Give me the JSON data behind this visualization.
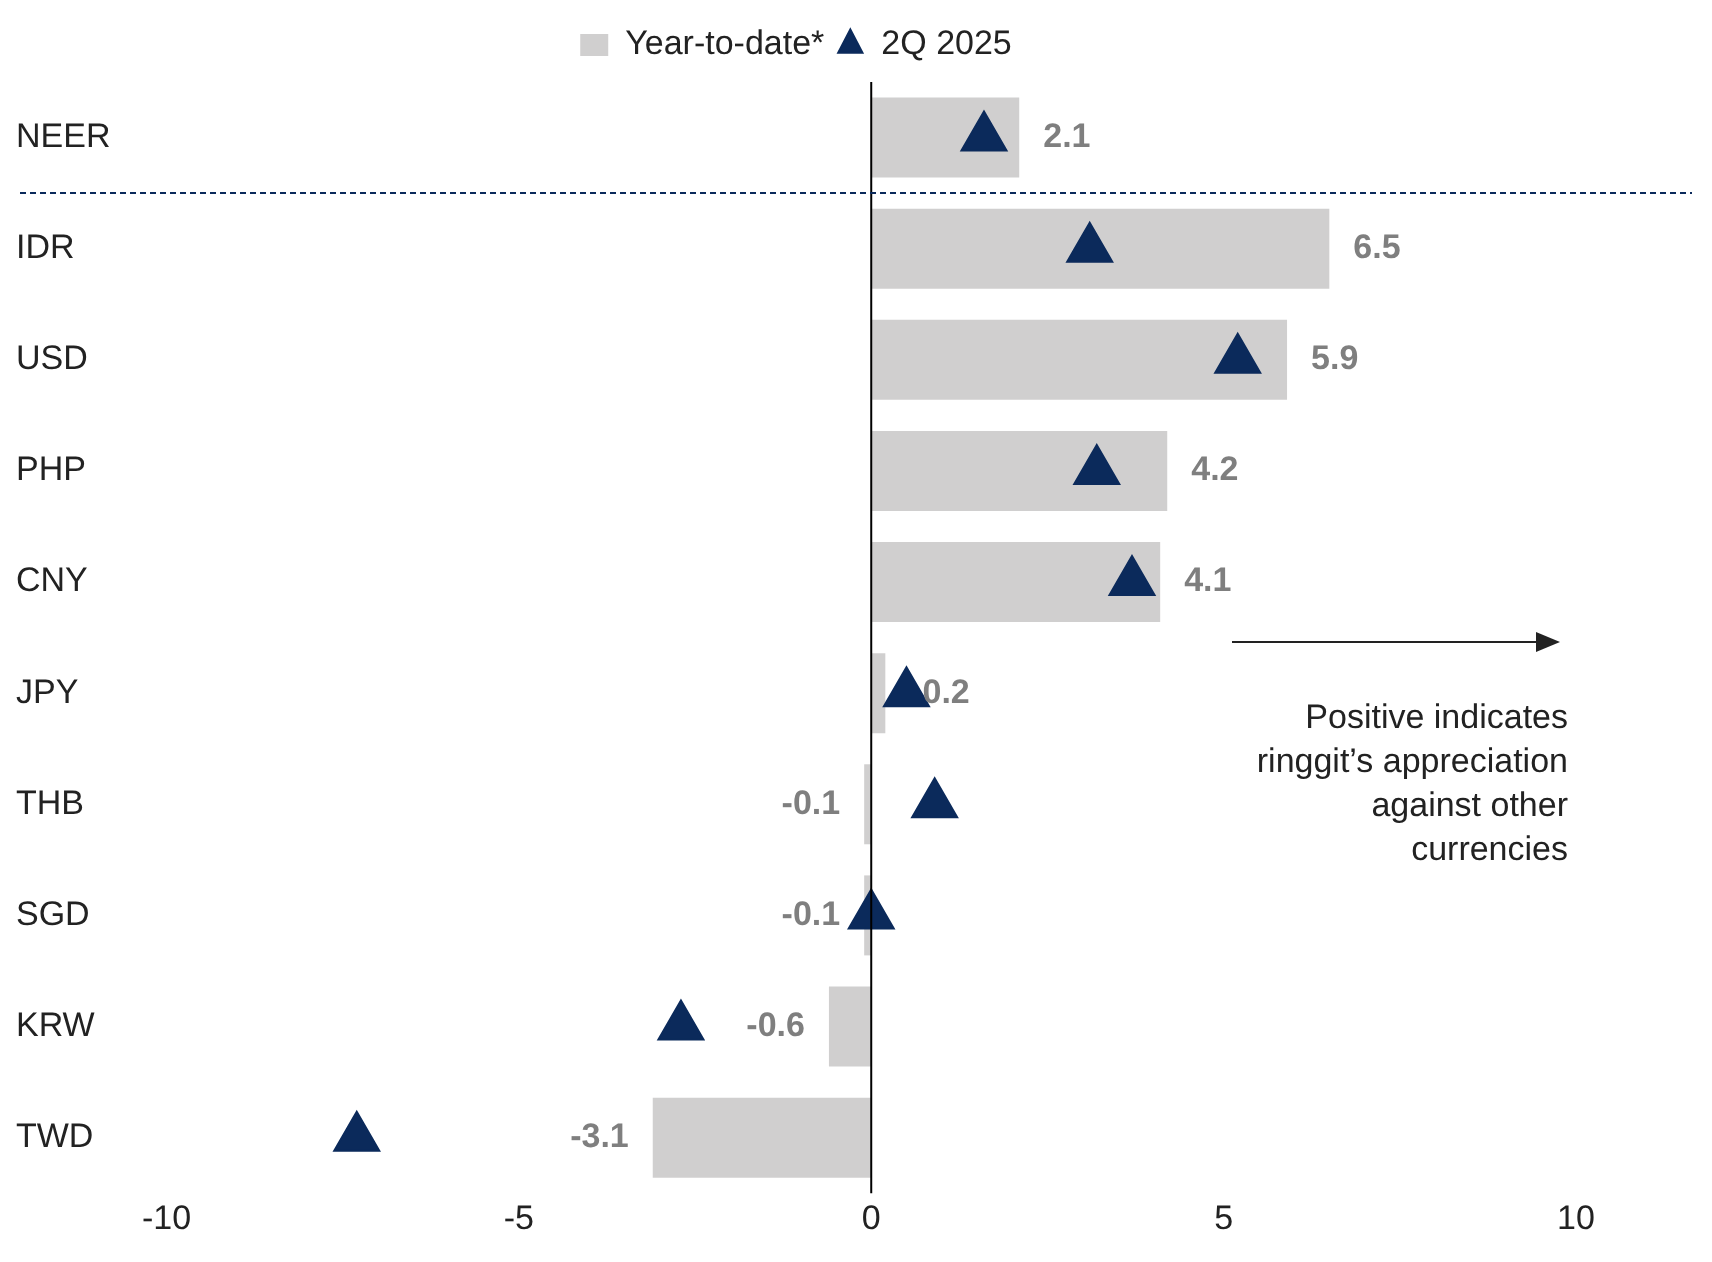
{
  "chart_data": {
    "type": "bar",
    "orientation": "horizontal",
    "categories": [
      "NEER",
      "IDR",
      "USD",
      "PHP",
      "CNY",
      "JPY",
      "THB",
      "SGD",
      "KRW",
      "TWD"
    ],
    "series": [
      {
        "name": "Year-to-date*",
        "color": "#d0cfcf",
        "values": [
          2.1,
          6.5,
          5.9,
          4.2,
          4.1,
          0.2,
          -0.1,
          -0.1,
          -0.6,
          -3.1
        ],
        "value_labels": [
          "2.1",
          "6.5",
          "5.9",
          "4.2",
          "4.1",
          "0.2",
          "-0.1",
          "-0.1",
          "-0.6",
          "-3.1"
        ]
      },
      {
        "name": "2Q 2025",
        "type": "scatter",
        "color": "#0b2a5b",
        "values": [
          1.6,
          3.1,
          5.2,
          3.2,
          3.7,
          0.5,
          0.9,
          0.0,
          -2.7,
          -7.3
        ]
      }
    ],
    "marker": "triangle",
    "xlim": [
      -10,
      10
    ],
    "xticks": [
      -10,
      -5,
      0,
      5,
      10
    ],
    "legend": "top",
    "ref_lines": [
      {
        "axis": "y",
        "value": "NEER",
        "line_style": "dashed",
        "color": "#0b2a5b"
      }
    ],
    "annotations": [
      "Positive indicates ringgit’s appreciation against other currencies"
    ]
  }
}
